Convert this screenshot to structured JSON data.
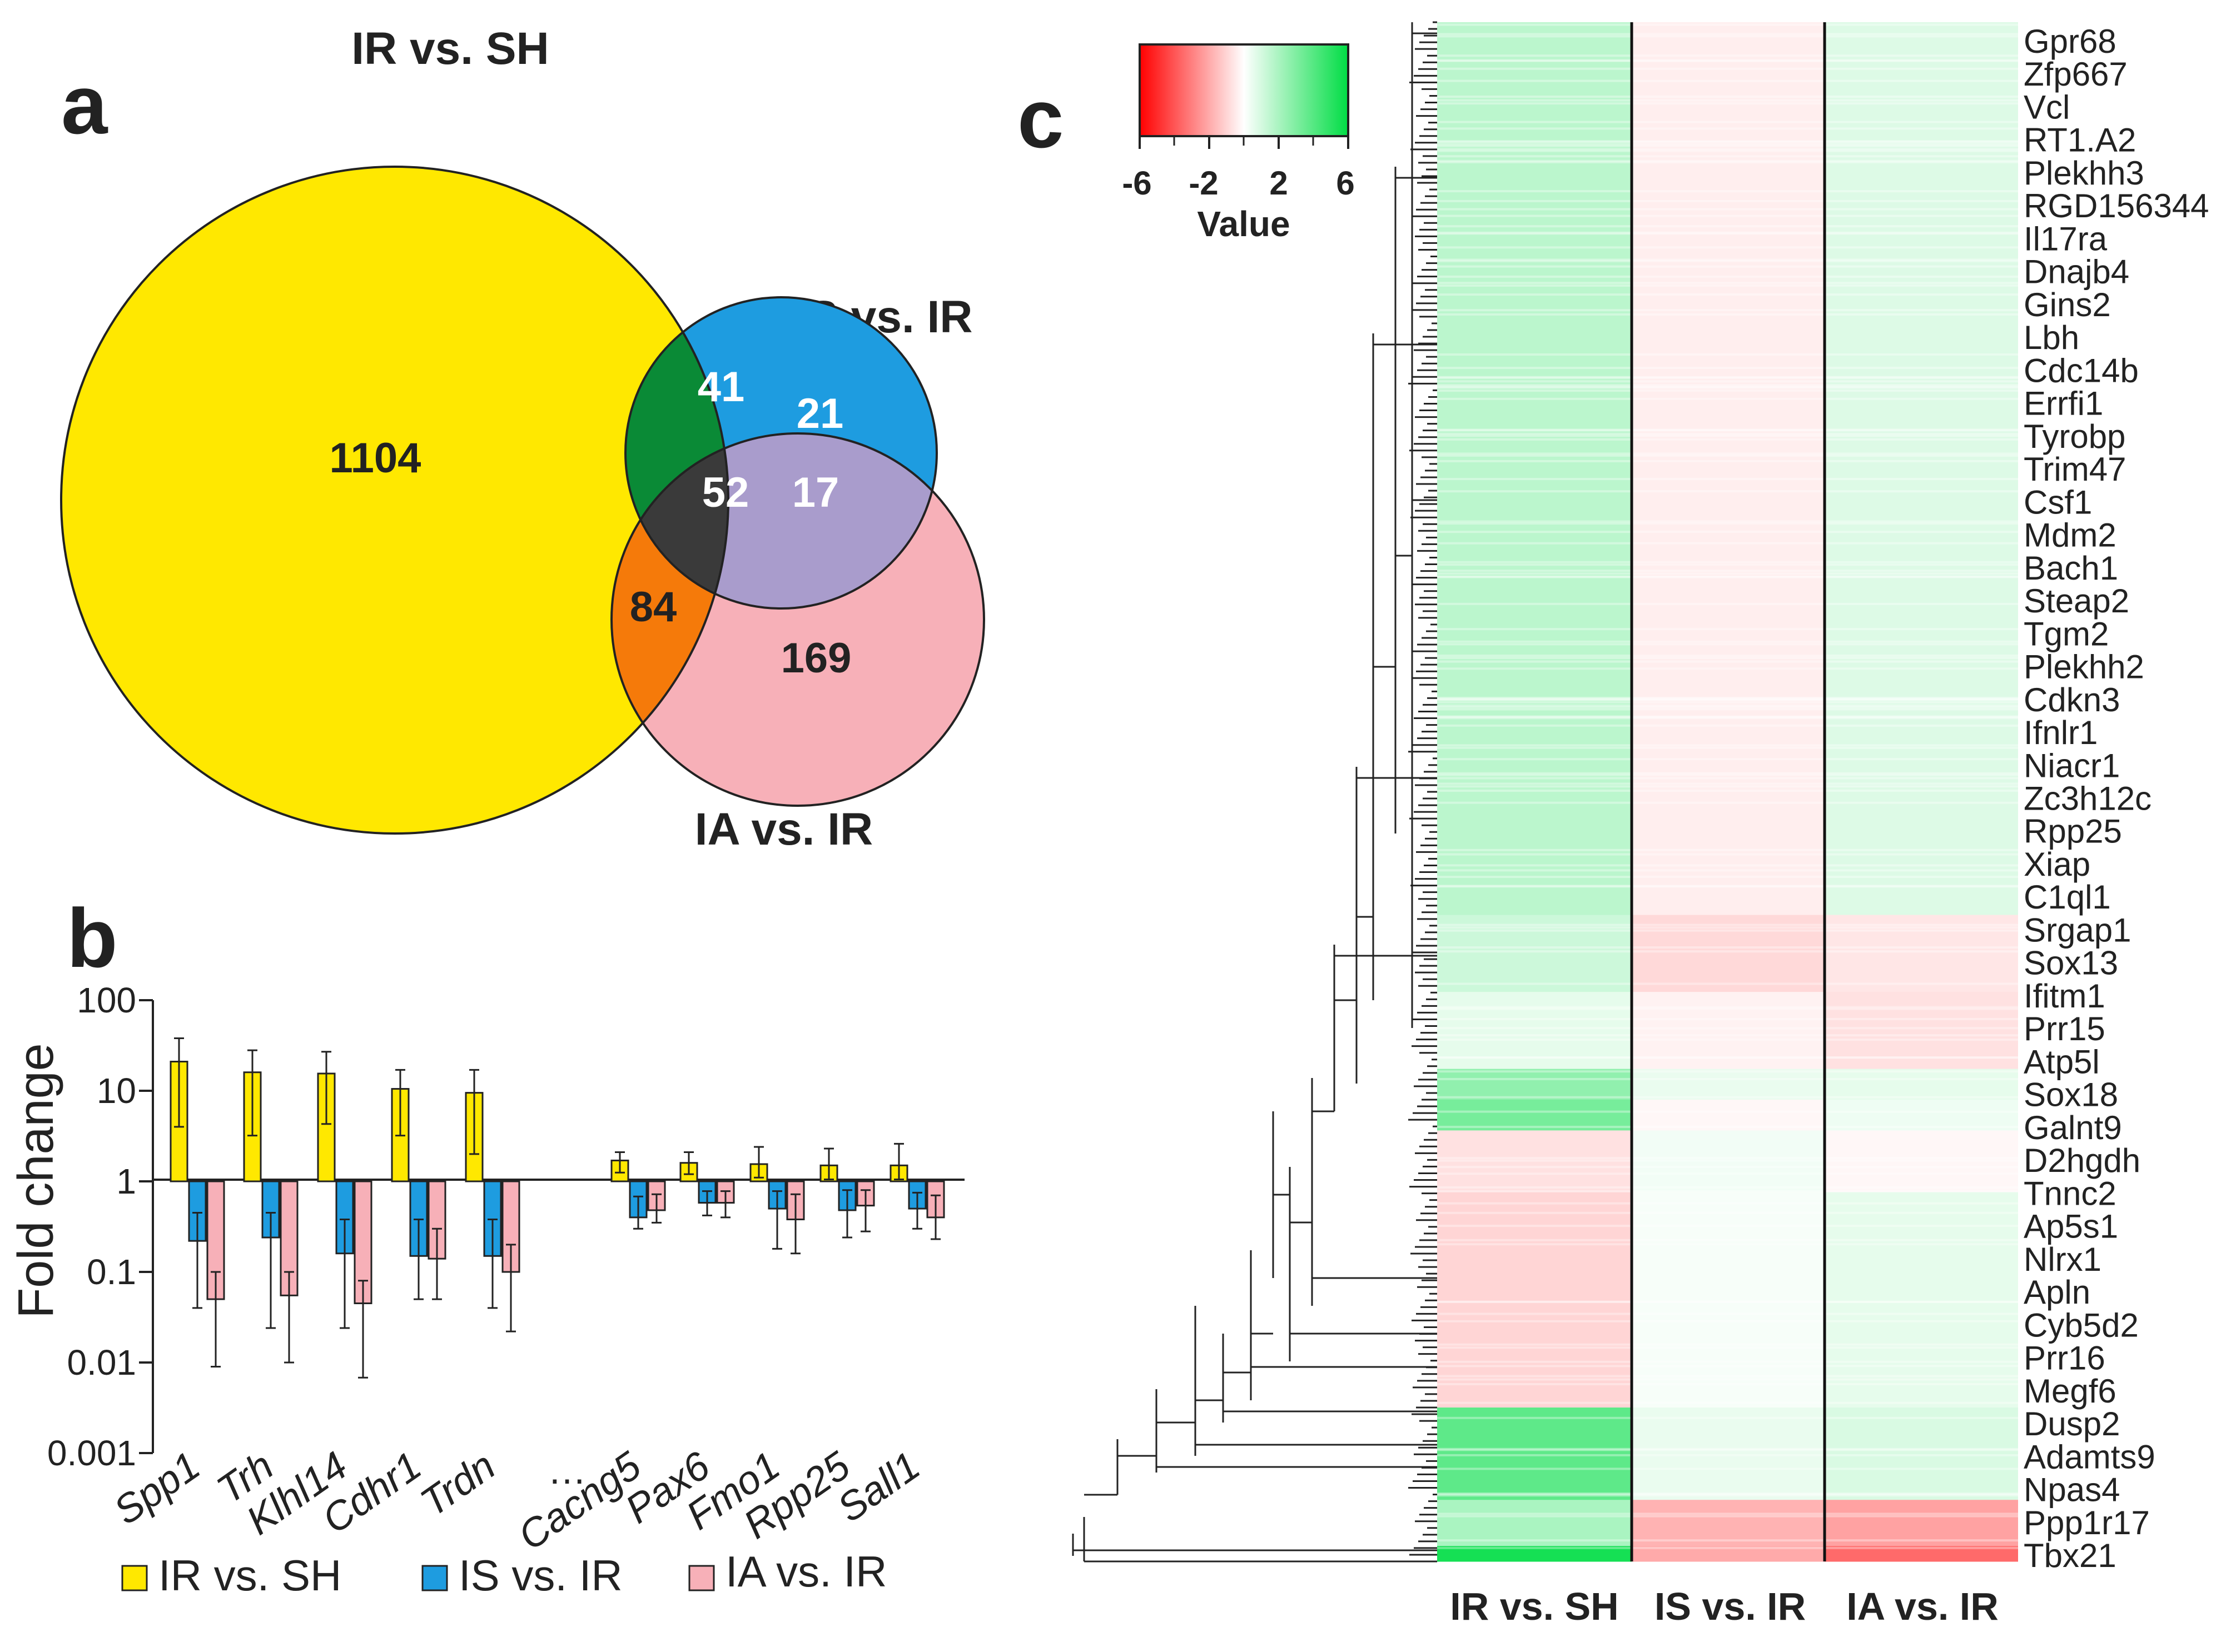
{
  "chart_data": [
    {
      "panel": "a",
      "type": "venn",
      "sets": [
        "IR vs. SH",
        "IS vs. IR",
        "IA vs. IR"
      ],
      "regions": [
        {
          "sets": [
            "IR vs. SH"
          ],
          "value": 1104
        },
        {
          "sets": [
            "IR vs. SH",
            "IS vs. IR"
          ],
          "value": 41
        },
        {
          "sets": [
            "IS vs. IR"
          ],
          "value": 21
        },
        {
          "sets": [
            "IR vs. SH",
            "IS vs. IR",
            "IA vs. IR"
          ],
          "value": 52
        },
        {
          "sets": [
            "IS vs. IR",
            "IA vs. IR"
          ],
          "value": 17
        },
        {
          "sets": [
            "IR vs. SH",
            "IA vs. IR"
          ],
          "value": 84
        },
        {
          "sets": [
            "IA vs. IR"
          ],
          "value": 169
        }
      ],
      "colors": {
        "IR vs. SH": "#ffe800",
        "IS vs. IR": "#1e9ce0",
        "IA vs. IR": "#f7b0b8",
        "overlap_ab": "#0a8a36",
        "overlap_abc": "#3a3a3a",
        "overlap_bc": "#a99ccc",
        "overlap_ac": "#f57a0a"
      }
    },
    {
      "panel": "b",
      "type": "bar",
      "ylabel": "Fold change",
      "yscale": "log",
      "ylim": [
        0.001,
        100
      ],
      "yticks": [
        "100",
        "10",
        "1",
        "0.1",
        "0.01",
        "0.001"
      ],
      "categories": [
        "Spp1",
        "Trh",
        "Klhl14",
        "Cdhr1",
        "Trdn",
        "…",
        "Cacng5",
        "Pax6",
        "Fmo1",
        "Rpp25",
        "Sall1"
      ],
      "series": [
        {
          "name": "IR vs. SH",
          "color": "#ffe800",
          "values": [
            21,
            16,
            15.5,
            10.5,
            9.5,
            null,
            1.7,
            1.6,
            1.55,
            1.5,
            1.5
          ],
          "err_high": [
            38,
            28,
            27,
            17,
            17,
            null,
            2.1,
            2.1,
            2.4,
            2.3,
            2.6
          ],
          "err_low": [
            4,
            3.2,
            4.3,
            3.2,
            2,
            null,
            1.25,
            1.2,
            1.1,
            1.05,
            1.05
          ]
        },
        {
          "name": "IS vs. IR",
          "color": "#1e9ce0",
          "values": [
            0.22,
            0.24,
            0.16,
            0.15,
            0.15,
            null,
            0.4,
            0.58,
            0.5,
            0.48,
            0.5
          ],
          "err_high": [
            0.45,
            0.45,
            0.38,
            0.38,
            0.38,
            null,
            0.68,
            0.78,
            0.78,
            0.8,
            0.75
          ],
          "err_low": [
            0.04,
            0.024,
            0.024,
            0.05,
            0.04,
            null,
            0.3,
            0.42,
            0.18,
            0.24,
            0.3
          ]
        },
        {
          "name": "IA vs. IR",
          "color": "#f7b0b8",
          "values": [
            0.05,
            0.055,
            0.045,
            0.14,
            0.1,
            null,
            0.48,
            0.58,
            0.38,
            0.54,
            0.4
          ],
          "err_high": [
            0.1,
            0.1,
            0.08,
            0.3,
            0.2,
            null,
            0.72,
            0.78,
            0.72,
            0.8,
            0.7
          ],
          "err_low": [
            0.009,
            0.01,
            0.0068,
            0.05,
            0.022,
            null,
            0.35,
            0.4,
            0.16,
            0.28,
            0.23
          ]
        }
      ],
      "legend": [
        "IR vs. SH",
        "IS vs. IR",
        "IA vs. IR"
      ]
    },
    {
      "panel": "c",
      "type": "heatmap",
      "columns": [
        "IR vs. SH",
        "IS vs. IR",
        "IA vs. IR"
      ],
      "colorbar": {
        "title": "Value",
        "ticks": [
          "-6",
          "-2",
          "2",
          "6"
        ],
        "min": -6,
        "max": 6,
        "low_color": "#ff0000",
        "mid_color": "#ffffff",
        "high_color": "#00dd44"
      },
      "row_labels": [
        "Gpr68",
        "Zfp667",
        "Vcl",
        "RT1.A2",
        "Plekhh3",
        "RGD156344",
        "Il17ra",
        "Dnajb4",
        "Gins2",
        "Lbh",
        "Cdc14b",
        "Errfi1",
        "Tyrobp",
        "Trim47",
        "Csf1",
        "Mdm2",
        "Bach1",
        "Steap2",
        "Tgm2",
        "Plekhh2",
        "Cdkn3",
        "Ifnlr1",
        "Niacr1",
        "Zc3h12c",
        "Rpp25",
        "Xiap",
        "C1ql1",
        "Srgap1",
        "Sox13",
        "Ifitm1",
        "Prr15",
        "Atp5l",
        "Sox18",
        "Galnt9",
        "D2hgdh",
        "Tnnc2",
        "Ap5s1",
        "Nlrx1",
        "Apln",
        "Cyb5d2",
        "Prr16",
        "Megf6",
        "Dusp2",
        "Adamts9",
        "Npas4",
        "Ppp1r17",
        "Tbx21"
      ],
      "blocks": [
        {
          "from": 0.0,
          "to": 0.58,
          "values": [
            1.6,
            -0.4,
            0.8
          ]
        },
        {
          "from": 0.58,
          "to": 0.63,
          "values": [
            1.2,
            -0.9,
            -0.6
          ]
        },
        {
          "from": 0.63,
          "to": 0.68,
          "values": [
            0.6,
            -0.3,
            -0.7
          ]
        },
        {
          "from": 0.68,
          "to": 0.7,
          "values": [
            2.6,
            0.5,
            0.6
          ]
        },
        {
          "from": 0.7,
          "to": 0.72,
          "values": [
            3.2,
            -0.2,
            0.4
          ]
        },
        {
          "from": 0.72,
          "to": 0.76,
          "values": [
            -0.7,
            0.3,
            -0.2
          ]
        },
        {
          "from": 0.76,
          "to": 0.9,
          "values": [
            -1.0,
            0.2,
            0.6
          ]
        },
        {
          "from": 0.9,
          "to": 0.96,
          "values": [
            3.8,
            0.5,
            0.9
          ]
        },
        {
          "from": 0.96,
          "to": 0.99,
          "values": [
            2.0,
            -1.8,
            -2.2
          ]
        },
        {
          "from": 0.99,
          "to": 1.0,
          "values": [
            5.5,
            -2.0,
            -3.5
          ]
        }
      ]
    }
  ],
  "labels": {
    "panel_a": "a",
    "panel_b": "b",
    "panel_c": "c",
    "venn_title_a": "IR vs. SH",
    "venn_title_b": "IS vs. IR",
    "venn_title_c": "IA vs. IR",
    "ellipsis": "…"
  }
}
